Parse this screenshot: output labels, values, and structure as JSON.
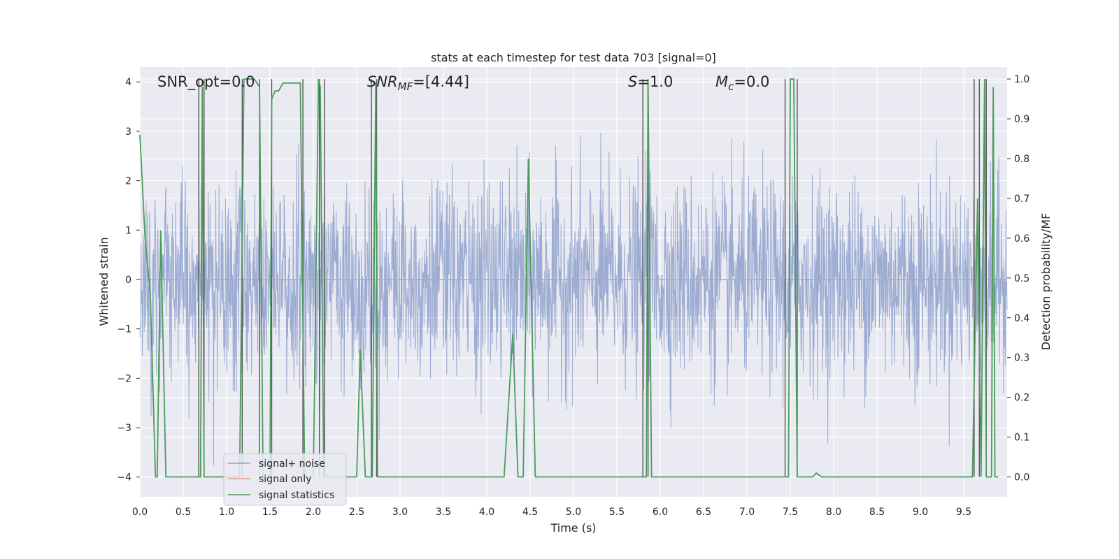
{
  "chart_data": {
    "type": "line",
    "title": "stats at each timestep for test data 703 [signal=0]",
    "xlabel": "Time (s)",
    "ylabel_left": "Whitened strain",
    "ylabel_right": "Detection probability/MF",
    "xlim": [
      0.0,
      10.0
    ],
    "ylim_left": [
      -4.4,
      4.3
    ],
    "ylim_right": [
      -0.05,
      1.03
    ],
    "x_ticks": [
      "0.0",
      "0.5",
      "1.0",
      "1.5",
      "2.0",
      "2.5",
      "3.0",
      "3.5",
      "4.0",
      "4.5",
      "5.0",
      "5.5",
      "6.0",
      "6.5",
      "7.0",
      "7.5",
      "8.0",
      "8.5",
      "9.0",
      "9.5"
    ],
    "y_ticks_left": [
      "4",
      "3",
      "2",
      "1",
      "0",
      "−1",
      "−2",
      "−3",
      "−4"
    ],
    "y_ticks_right": [
      "1.0",
      "0.9",
      "0.8",
      "0.7",
      "0.6",
      "0.5",
      "0.4",
      "0.3",
      "0.2",
      "0.1",
      "0.0"
    ],
    "grid": true,
    "legend_position": "lower-left",
    "annotations": {
      "snr_opt": "SNR_opt=0.0",
      "snr_mf_base": "SNR",
      "snr_mf_sub": "MF",
      "snr_mf_value": "=[4.44]",
      "s_base": "S",
      "s_value": "=1.0",
      "mc_base": "M",
      "mc_sub": "c",
      "mc_value": "=0.0"
    },
    "series": [
      {
        "name": "signal+ noise",
        "axis": "left",
        "color": "#8da0cb",
        "note": "white-noise strain, amplitude roughly within ±2.5 with peaks reaching ±4"
      },
      {
        "name": "signal only",
        "axis": "left",
        "color": "#e5997a",
        "x": [
          0.0,
          10.0
        ],
        "y": [
          0.0,
          0.0
        ]
      },
      {
        "name": "signal statistics",
        "axis": "right",
        "color": "#4a9c5a",
        "x": [
          0.0,
          0.06,
          0.12,
          0.18,
          0.2,
          0.24,
          0.3,
          0.34,
          0.38,
          0.46,
          0.7,
          0.72,
          0.74,
          0.78,
          0.8,
          1.0,
          1.15,
          1.2,
          1.25,
          1.32,
          1.38,
          1.42,
          1.5,
          1.52,
          1.56,
          1.6,
          1.65,
          1.7,
          1.85,
          1.9,
          2.0,
          2.06,
          2.08,
          2.12,
          2.14,
          2.2,
          2.5,
          2.54,
          2.6,
          2.66,
          2.68,
          2.72,
          2.74,
          2.8,
          2.9,
          3.1,
          4.2,
          4.3,
          4.36,
          4.42,
          4.48,
          4.56,
          4.62,
          4.7,
          5.8,
          5.84,
          5.86,
          5.9,
          5.94,
          5.98,
          7.3,
          7.4,
          7.44,
          7.48,
          7.5,
          7.54,
          7.58,
          7.64,
          7.7,
          7.76,
          7.8,
          7.86,
          8.0,
          9.6,
          9.66,
          9.7,
          9.74,
          9.76,
          9.78,
          9.8,
          9.82,
          9.84,
          9.86,
          9.9
        ],
        "y": [
          0.86,
          0.6,
          0.46,
          0.0,
          0.0,
          0.62,
          0.0,
          0.0,
          0.0,
          0.0,
          0.0,
          0.98,
          0.0,
          0.0,
          0.0,
          0.0,
          0.0,
          1.0,
          1.0,
          1.0,
          0.98,
          0.0,
          0.0,
          0.95,
          0.97,
          0.97,
          0.99,
          0.99,
          0.99,
          0.0,
          0.0,
          1.0,
          0.98,
          0.0,
          0.0,
          0.0,
          0.0,
          0.32,
          0.0,
          0.0,
          0.0,
          0.99,
          0.0,
          0.0,
          0.0,
          0.0,
          0.0,
          0.36,
          0.0,
          0.0,
          0.8,
          0.0,
          0.0,
          0.0,
          0.0,
          0.0,
          1.0,
          0.0,
          0.0,
          0.0,
          0.0,
          0.0,
          0.0,
          0.0,
          1.0,
          1.0,
          0.0,
          0.0,
          0.0,
          0.0,
          0.01,
          0.0,
          0.0,
          0.0,
          0.7,
          0.0,
          1.0,
          0.0,
          0.0,
          0.0,
          0.0,
          0.98,
          0.0,
          0.0
        ]
      }
    ],
    "vertical_markers_x": [
      0.68,
      0.74,
      1.18,
      1.38,
      1.52,
      1.88,
      2.07,
      2.13,
      2.67,
      2.73,
      5.8,
      5.86,
      7.44,
      7.58,
      9.62,
      9.68,
      9.76
    ]
  }
}
